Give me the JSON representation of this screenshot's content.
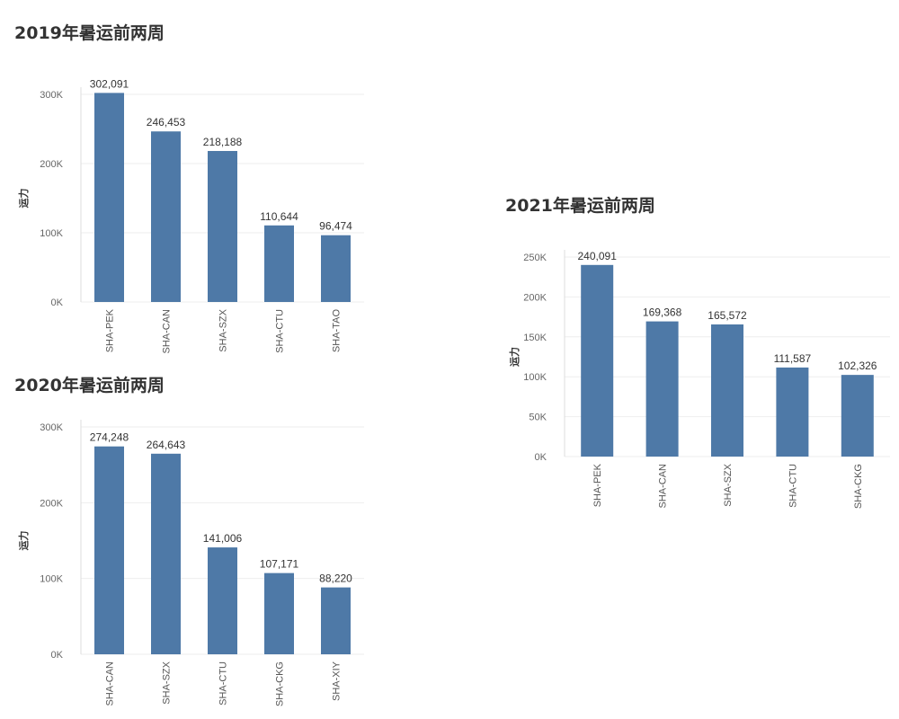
{
  "colors": {
    "bar": "#4e79a7",
    "grid": "#eeeeee",
    "axis": "#dddddd"
  },
  "chart_data": [
    {
      "type": "bar",
      "title": "2019年暑运前两周",
      "ylabel": "运力",
      "categories": [
        "SHA-PEK",
        "SHA-CAN",
        "SHA-SZX",
        "SHA-CTU",
        "SHA-TAO"
      ],
      "values": [
        302091,
        246453,
        218188,
        110644,
        96474
      ],
      "value_labels": [
        "302,091",
        "246,453",
        "218,188",
        "110,644",
        "96,474"
      ],
      "yticks": [
        0,
        100000,
        200000,
        300000
      ],
      "ytick_labels": [
        "0K",
        "100K",
        "200K",
        "300K"
      ],
      "ylim": [
        0,
        300000
      ],
      "grid": true
    },
    {
      "type": "bar",
      "title": "2020年暑运前两周",
      "ylabel": "运力",
      "categories": [
        "SHA-CAN",
        "SHA-SZX",
        "SHA-CTU",
        "SHA-CKG",
        "SHA-XIY"
      ],
      "values": [
        274248,
        264643,
        141006,
        107171,
        88220
      ],
      "value_labels": [
        "274,248",
        "264,643",
        "141,006",
        "107,171",
        "88,220"
      ],
      "yticks": [
        0,
        100000,
        200000,
        300000
      ],
      "ytick_labels": [
        "0K",
        "100K",
        "200K",
        "300K"
      ],
      "ylim": [
        0,
        300000
      ],
      "grid": true
    },
    {
      "type": "bar",
      "title": "2021年暑运前两周",
      "ylabel": "运力",
      "categories": [
        "SHA-PEK",
        "SHA-CAN",
        "SHA-SZX",
        "SHA-CTU",
        "SHA-CKG"
      ],
      "values": [
        240091,
        169368,
        165572,
        111587,
        102326
      ],
      "value_labels": [
        "240,091",
        "169,368",
        "165,572",
        "111,587",
        "102,326"
      ],
      "yticks": [
        0,
        50000,
        100000,
        150000,
        200000,
        250000
      ],
      "ytick_labels": [
        "0K",
        "50K",
        "100K",
        "150K",
        "200K",
        "250K"
      ],
      "ylim": [
        0,
        250000
      ],
      "grid": true
    }
  ]
}
